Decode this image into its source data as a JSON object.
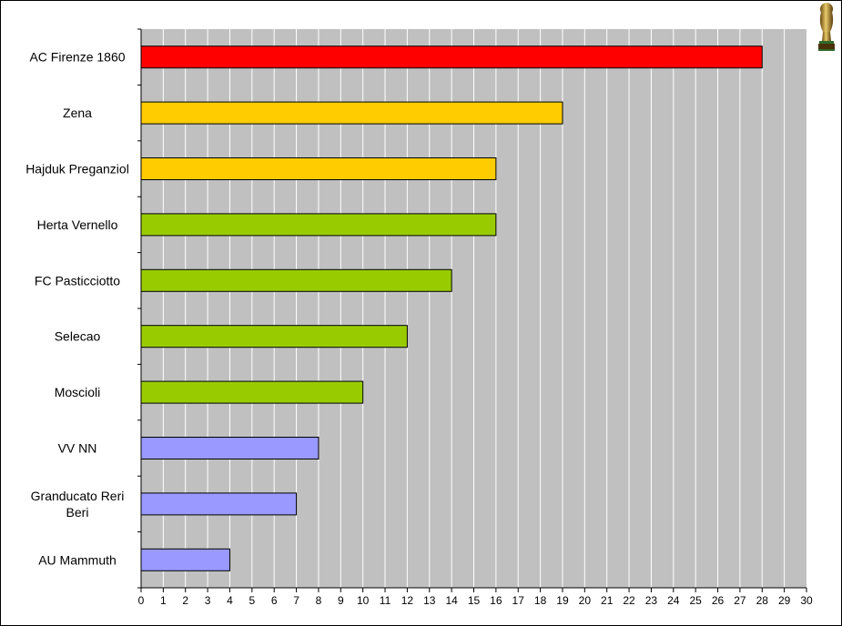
{
  "chart_data": {
    "type": "bar",
    "orientation": "horizontal",
    "categories": [
      "AC Firenze 1860",
      "Zena",
      "Hajduk Preganziol",
      "Herta Vernello",
      "FC Pasticciotto",
      "Selecao",
      "Moscioli",
      "VV NN",
      "Granducato Reri Beri",
      "AU Mammuth"
    ],
    "category_lines": [
      [
        "AC Firenze 1860"
      ],
      [
        "Zena"
      ],
      [
        "Hajduk Preganziol"
      ],
      [
        "Herta Vernello"
      ],
      [
        "FC Pasticciotto"
      ],
      [
        "Selecao"
      ],
      [
        "Moscioli"
      ],
      [
        "VV NN"
      ],
      [
        "Granducato Reri",
        "Beri"
      ],
      [
        "AU Mammuth"
      ]
    ],
    "values": [
      28,
      19,
      16,
      16,
      14,
      12,
      10,
      8,
      7,
      4
    ],
    "bar_colors": [
      "#ff0000",
      "#ffcc00",
      "#ffcc00",
      "#99cc00",
      "#99cc00",
      "#99cc00",
      "#99cc00",
      "#9999ff",
      "#9999ff",
      "#9999ff"
    ],
    "xlim": [
      0,
      30
    ],
    "xticks": [
      0,
      1,
      2,
      3,
      4,
      5,
      6,
      7,
      8,
      9,
      10,
      11,
      12,
      13,
      14,
      15,
      16,
      17,
      18,
      19,
      20,
      21,
      22,
      23,
      24,
      25,
      26,
      27,
      28,
      29,
      30
    ],
    "title": "",
    "xlabel": "",
    "ylabel": "",
    "grid": "vertical",
    "plot_background": "#c0c0c0",
    "gridline_color": "#ffffff"
  },
  "logo": {
    "icon": "trophy-icon"
  }
}
